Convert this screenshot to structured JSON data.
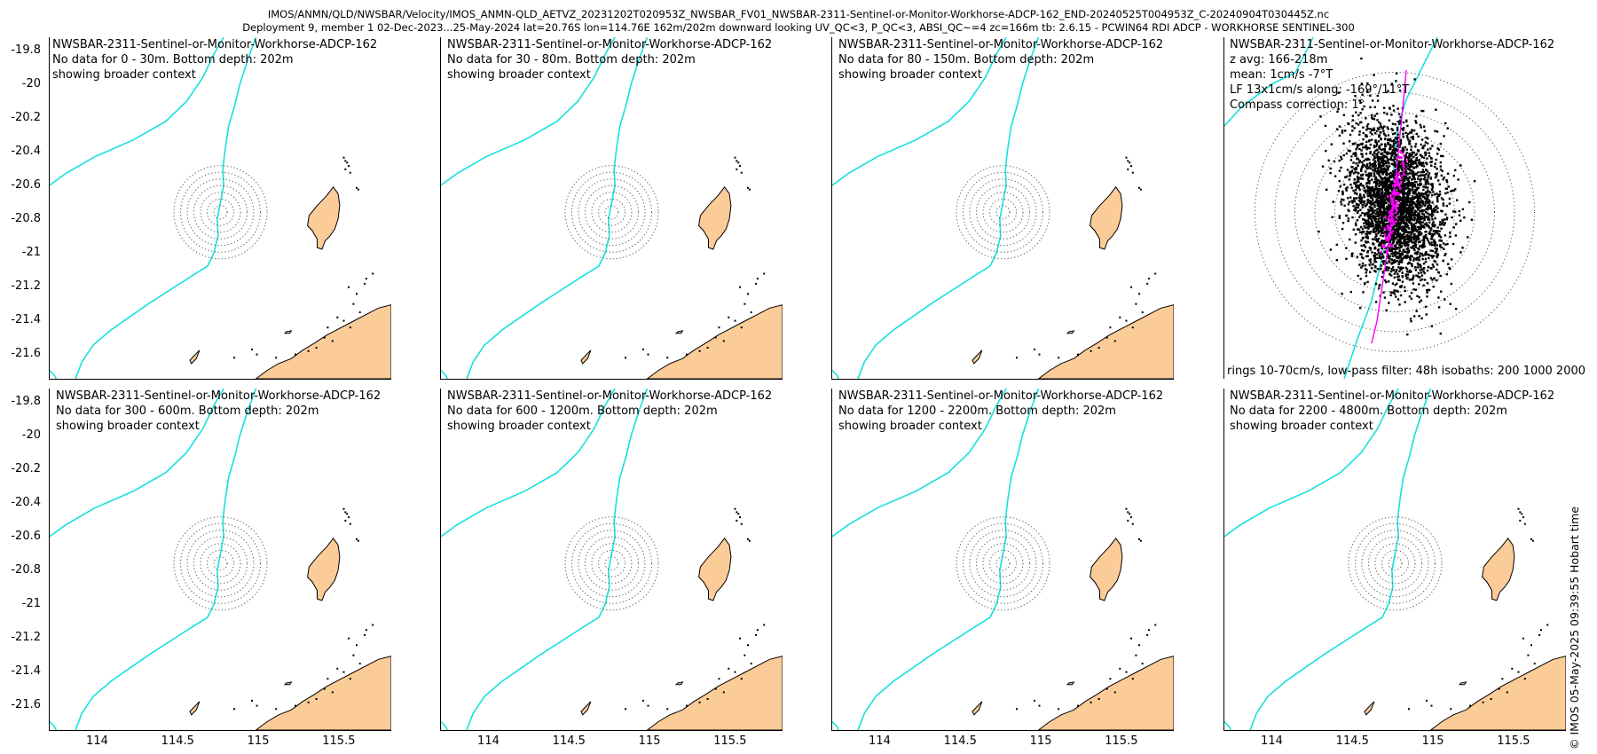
{
  "header": {
    "line1": "IMOS/ANMN/QLD/NWSBAR/Velocity/IMOS_ANMN-QLD_AETVZ_20231202T020953Z_NWSBAR_FV01_NWSBAR-2311-Sentinel-or-Monitor-Workhorse-ADCP-162_END-20240525T004953Z_C-20240904T030445Z.nc",
    "line2": "Deployment 9, member 1 02-Dec-2023...25-May-2024 lat=20.76S lon=114.76E 162m/202m downward looking UV_QC<3, P_QC<3, ABSI_QC~=4 zc=166m tb: 2.6.15 - PCWIN64 RDI ADCP - WORKHORSE SENTINEL-300"
  },
  "map": {
    "x_ticks": [
      "114",
      "114.5",
      "115",
      "115.5"
    ],
    "y_ticks": [
      "-19.8",
      "-20",
      "-20.2",
      "-20.4",
      "-20.6",
      "-20.8",
      "-21",
      "-21.2",
      "-21.4",
      "-21.6"
    ],
    "station": {
      "lon": 114.76,
      "lat": -20.76
    },
    "colors": {
      "land": "#fbcb98",
      "isobath": "#16e0e0",
      "scatter": "#000000",
      "lowpass": "#ff00ff",
      "rings": "#555555"
    }
  },
  "panels": [
    {
      "title": "NWSBAR-2311-Sentinel-or-Monitor-Workhorse-ADCP-162",
      "line2": "No data for 0 - 30m. Bottom depth: 202m",
      "line3": "showing broader context"
    },
    {
      "title": "NWSBAR-2311-Sentinel-or-Monitor-Workhorse-ADCP-162",
      "line2": "No data for 30 - 80m. Bottom depth: 202m",
      "line3": "showing broader context"
    },
    {
      "title": "NWSBAR-2311-Sentinel-or-Monitor-Workhorse-ADCP-162",
      "line2": "No data for 80 - 150m. Bottom depth: 202m",
      "line3": "showing broader context"
    },
    {
      "title": "NWSBAR-2311-Sentinel-or-Monitor-Workhorse-ADCP-162",
      "zavg": "z avg: 166-218m",
      "mean": "mean: 1cm/s -7°T",
      "lf": "LF 13x1cm/s along: -169°/11°T",
      "compass": "Compass correction: 1°"
    },
    {
      "title": "NWSBAR-2311-Sentinel-or-Monitor-Workhorse-ADCP-162",
      "line2": "No data for 300 - 600m. Bottom depth: 202m",
      "line3": "showing broader context"
    },
    {
      "title": "NWSBAR-2311-Sentinel-or-Monitor-Workhorse-ADCP-162",
      "line2": "No data for 600 - 1200m. Bottom depth: 202m",
      "line3": "showing broader context"
    },
    {
      "title": "NWSBAR-2311-Sentinel-or-Monitor-Workhorse-ADCP-162",
      "line2": "No data for 1200 - 2200m. Bottom depth: 202m",
      "line3": "showing broader context"
    },
    {
      "title": "NWSBAR-2311-Sentinel-or-Monitor-Workhorse-ADCP-162",
      "line2": "No data for 2200 - 4800m. Bottom depth: 202m",
      "line3": "showing broader context"
    }
  ],
  "footer_note": "rings 10-70cm/s, low-pass filter: 48h isobaths: 200 1000 2000",
  "credit": "© IMOS 05-May-2025 09:39:55 Hobart time"
}
